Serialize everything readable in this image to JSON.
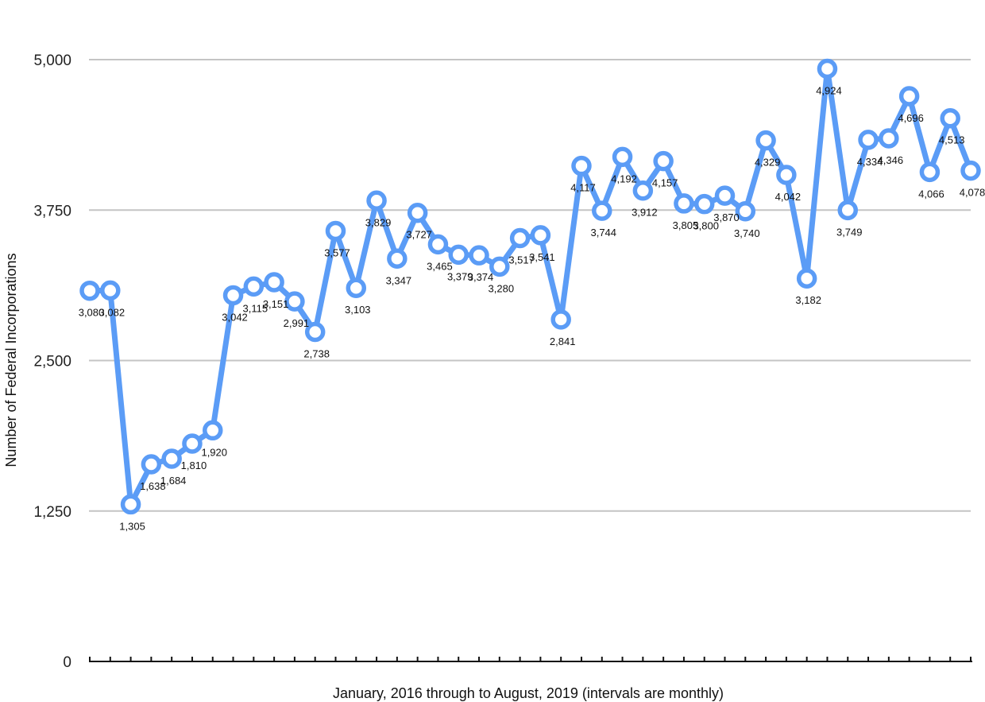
{
  "chart_data": {
    "type": "line",
    "title": "",
    "xlabel": "January, 2016 through to August, 2019 (intervals are monthly)",
    "ylabel": "Number of Federal  Incorporations",
    "ylim": [
      0,
      5000
    ],
    "y_ticks": [
      "0",
      "1,250",
      "2,500",
      "3,750",
      "5,000"
    ],
    "y_tick_values": [
      0,
      1250,
      2500,
      3750,
      5000
    ],
    "grid": true,
    "line_color": "#5b9cf6",
    "series": [
      {
        "values": [
          3080,
          3082,
          1305,
          1638,
          1684,
          1810,
          1920,
          3042,
          3115,
          3151,
          2991,
          2738,
          3577,
          3103,
          3829,
          3347,
          3727,
          3465,
          3379,
          3374,
          3280,
          3517,
          3541,
          2841,
          4117,
          3744,
          4192,
          3912,
          4157,
          3805,
          3800,
          3870,
          3740,
          4329,
          4042,
          3182,
          4924,
          3749,
          4334,
          4346,
          4696,
          4066,
          4513,
          4078
        ],
        "labels": [
          "3,080",
          "3,082",
          "1,305",
          "1,638",
          "1,684",
          "1,810",
          "1,920",
          "3,042",
          "3,115",
          "3,151",
          "2,991",
          "2,738",
          "3,577",
          "3,103",
          "3,829",
          "3,347",
          "3,727",
          "3,465",
          "3,379",
          "3,374",
          "3,280",
          "3,517",
          "3,541",
          "2,841",
          "4,117",
          "3,744",
          "4,192",
          "3,912",
          "4,157",
          "3,805",
          "3,800",
          "3,870",
          "3,740",
          "4,329",
          "4,042",
          "3,182",
          "4,924",
          "3,749",
          "4,334",
          "4,346",
          "4,696",
          "4,066",
          "4,513",
          "4,078"
        ]
      }
    ]
  }
}
